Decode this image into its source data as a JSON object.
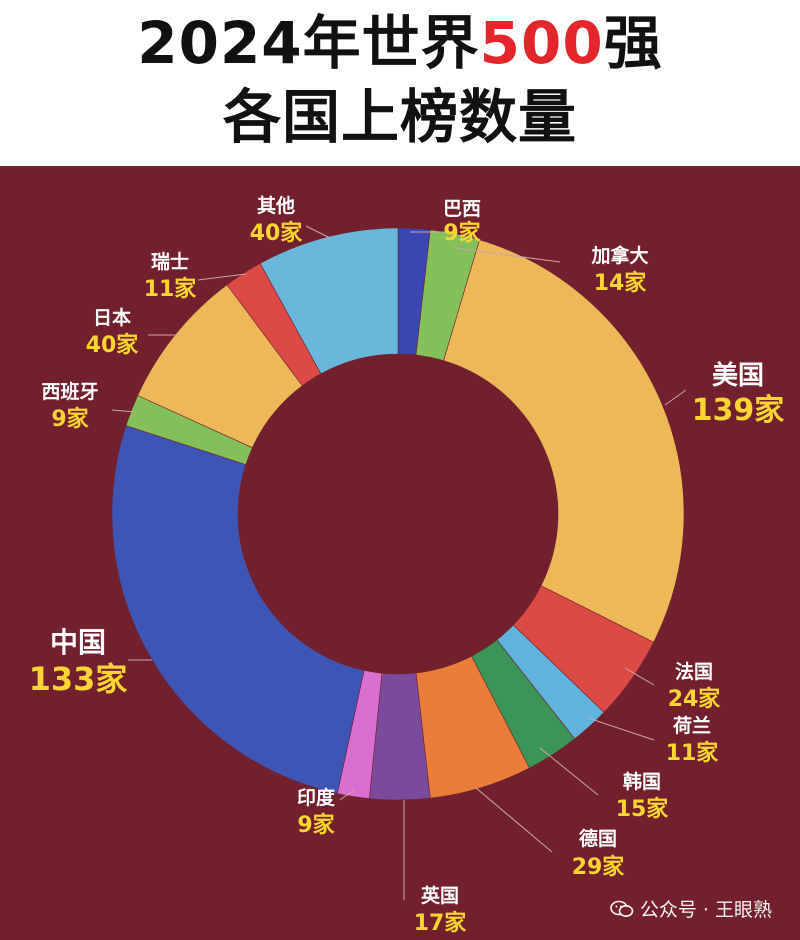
{
  "header": {
    "title_prefix": "2024年世界",
    "title_highlight": "500",
    "title_suffix": "强",
    "subtitle": "各国上榜数量"
  },
  "watermark": {
    "text": "公众号 · 王眼熟"
  },
  "colors": {
    "background": "#72202e",
    "header_background": "#ffffff",
    "title_text": "#111111",
    "title_highlight": "#e3262c",
    "label_name": "#ffffff",
    "label_value": "#f9d432"
  },
  "chart_data": {
    "type": "pie",
    "donut": true,
    "start_angle_deg": 0,
    "direction": "clockwise",
    "categories": [
      "巴西",
      "加拿大",
      "美国",
      "法国",
      "荷兰",
      "韩国",
      "德国",
      "英国",
      "印度",
      "中国",
      "西班牙",
      "日本",
      "瑞士",
      "其他"
    ],
    "values": [
      9,
      14,
      139,
      24,
      11,
      15,
      29,
      17,
      9,
      133,
      9,
      40,
      11,
      40
    ],
    "value_labels": [
      "9家",
      "14家",
      "139家",
      "24家",
      "11家",
      "15家",
      "29家",
      "17家",
      "9家",
      "133家",
      "9家",
      "40家",
      "11家",
      "40家"
    ],
    "slice_colors": [
      "#3a47b3",
      "#84c05a",
      "#edb858",
      "#dc4a45",
      "#5fb3dc",
      "#3a9556",
      "#ea7d3a",
      "#7a4b9d",
      "#db6fd1",
      "#3f55b6",
      "#84c05a",
      "#edb858",
      "#dc4a45",
      "#6ab7dc"
    ],
    "total": 500
  }
}
